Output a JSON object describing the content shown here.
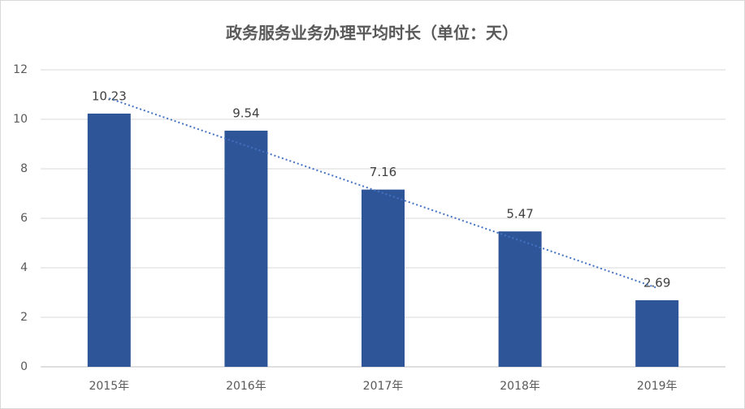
{
  "chart_data": {
    "type": "bar",
    "title": "政务服务业务办理平均时长（单位：天）",
    "categories": [
      "2015年",
      "2016年",
      "2017年",
      "2018年",
      "2019年"
    ],
    "values": [
      10.23,
      9.54,
      7.16,
      5.47,
      2.69
    ],
    "color": "#2e5597",
    "ylim": [
      0,
      12
    ],
    "yticks": [
      0,
      2,
      4,
      6,
      8,
      10,
      12
    ],
    "grid": true,
    "trendline": {
      "type": "linear",
      "color": "#4472c4"
    }
  }
}
